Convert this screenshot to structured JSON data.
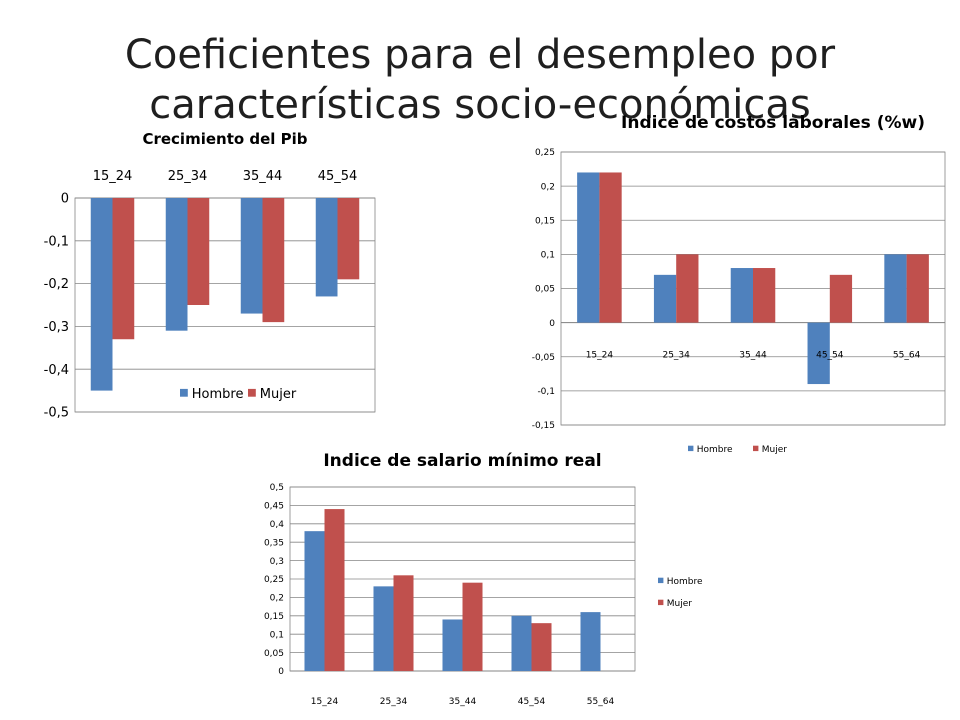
{
  "slide": {
    "title": "Coeficientes para el desempleo por características socio-económicas"
  },
  "chart_data": [
    {
      "type": "bar",
      "title": "Crecimiento del Pib",
      "categories": [
        "15_24",
        "25_34",
        "35_44",
        "45_54"
      ],
      "series": [
        {
          "name": "Hombre",
          "values": [
            -0.45,
            -0.31,
            -0.27,
            -0.23
          ],
          "color": "#4F81BD"
        },
        {
          "name": "Mujer",
          "values": [
            -0.33,
            -0.25,
            -0.29,
            -0.19
          ],
          "color": "#C0504D"
        }
      ],
      "ylim": [
        -0.5,
        0
      ],
      "yticks": [
        "0",
        "-0,1",
        "-0,2",
        "-0,3",
        "-0,4",
        "-0,5"
      ],
      "category_labels_position": "top",
      "grid": true,
      "legend": "bottom-inside"
    },
    {
      "type": "bar",
      "title": "Indice de costos laborales (%w)",
      "categories": [
        "15_24",
        "25_34",
        "35_44",
        "45_54",
        "55_64"
      ],
      "series": [
        {
          "name": "Hombre",
          "values": [
            0.22,
            0.07,
            0.08,
            -0.09,
            0.1
          ],
          "color": "#4F81BD"
        },
        {
          "name": "Mujer",
          "values": [
            0.22,
            0.1,
            0.08,
            0.07,
            0.1
          ],
          "color": "#C0504D"
        }
      ],
      "ylim": [
        -0.15,
        0.25
      ],
      "yticks": [
        "0,25",
        "0,2",
        "0,15",
        "0,1",
        "0,05",
        "0",
        "-0,05",
        "-0,1",
        "-0,15"
      ],
      "category_labels_position": "axis",
      "grid": true,
      "legend": "bottom"
    },
    {
      "type": "bar",
      "title": "Indice de salario mínimo real",
      "categories": [
        "15_24",
        "25_34",
        "35_44",
        "45_54",
        "55_64"
      ],
      "series": [
        {
          "name": "Hombre",
          "values": [
            0.38,
            0.23,
            0.14,
            0.15,
            0.16
          ],
          "color": "#4F81BD"
        },
        {
          "name": "Mujer",
          "values": [
            0.44,
            0.26,
            0.24,
            0.13,
            null
          ],
          "color": "#C0504D"
        }
      ],
      "ylim": [
        0,
        0.5
      ],
      "yticks": [
        "0,5",
        "0,45",
        "0,4",
        "0,35",
        "0,3",
        "0,25",
        "0,2",
        "0,15",
        "0,1",
        "0,05",
        "0"
      ],
      "category_labels_position": "bottom",
      "grid": true,
      "legend": "right"
    }
  ]
}
